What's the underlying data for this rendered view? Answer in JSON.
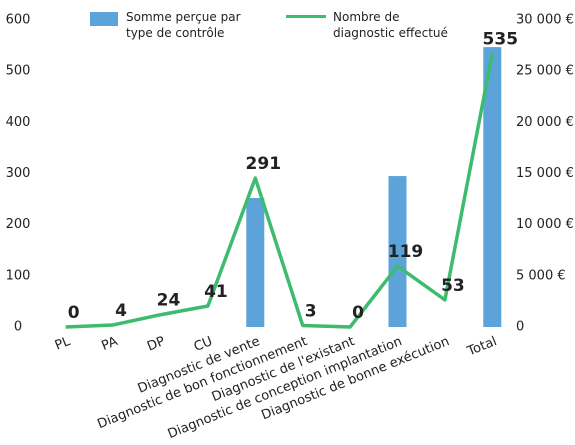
{
  "chart_data": {
    "type": "bar_line",
    "categories": [
      "PL",
      "PA",
      "DP",
      "CU",
      "Diagnostic de vente",
      "Diagnostic de bon fonctionnement",
      "Diagnostic de l'existant",
      "Diagnostic de conception implantation",
      "Diagnostic de bonne exécution",
      "Total"
    ],
    "series": [
      {
        "name": "Somme perçue par type de contrôle",
        "color": "#5ba3d9",
        "kind": "bar",
        "axis": "y2",
        "values": [
          0,
          0,
          0,
          0,
          12600,
          0,
          0,
          14750,
          0,
          27350
        ]
      },
      {
        "name": "Nombre de diagnostic effectué",
        "color": "#3dbb6e",
        "kind": "line",
        "values": [
          0,
          4,
          24,
          41,
          291,
          3,
          0,
          119,
          53,
          535
        ]
      }
    ],
    "ylim": [
      0,
      600
    ],
    "yticks": [
      0,
      100,
      200,
      300,
      400,
      500,
      600
    ],
    "y2lim": [
      0,
      30000
    ],
    "y2ticks": [
      {
        "value": 0,
        "label": "0"
      },
      {
        "value": 5000,
        "label": "5 000 €"
      },
      {
        "value": 10000,
        "label": "10 000 €"
      },
      {
        "value": 15000,
        "label": "15 000 €"
      },
      {
        "value": 20000,
        "label": "20 000 €"
      },
      {
        "value": 25000,
        "label": "25 000 €"
      },
      {
        "value": 30000,
        "label": "30 000 €"
      }
    ]
  }
}
